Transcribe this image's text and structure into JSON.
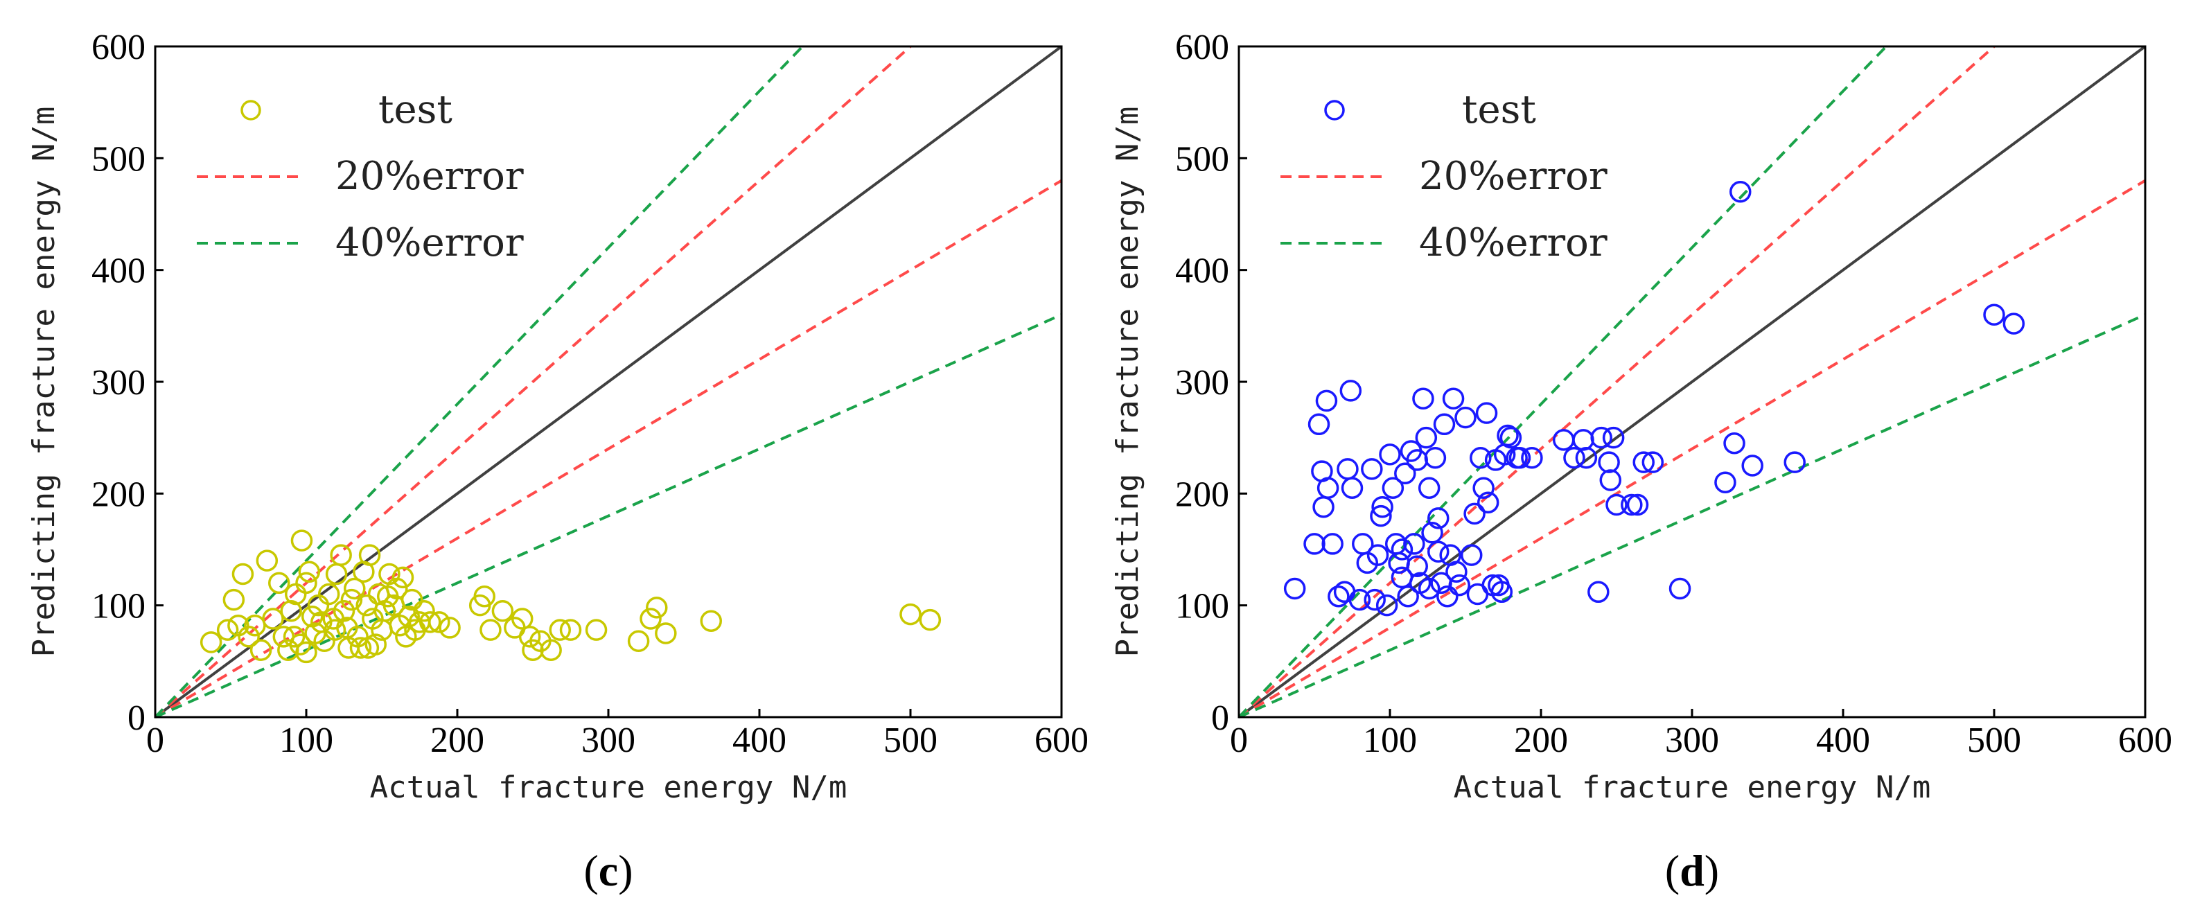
{
  "chart_data": [
    {
      "type": "scatter",
      "panel": "(c)",
      "panel_letter": "c",
      "xlabel": "Actual fracture energy N/m",
      "ylabel": "Predicting fracture energy N/m",
      "xlim": [
        0,
        600
      ],
      "ylim": [
        0,
        600
      ],
      "xticks": [
        0,
        100,
        200,
        300,
        400,
        500,
        600
      ],
      "yticks": [
        0,
        100,
        200,
        300,
        400,
        500,
        600
      ],
      "legend": [
        "test",
        "20%error",
        "40%error"
      ],
      "legend_position": "top-left",
      "colors": {
        "marker": "#c8c800",
        "diag": "#404040",
        "err20": "#ff4a4a",
        "err40": "#1aa34a"
      },
      "reference_lines": [
        {
          "name": "ideal",
          "slope": 1.0
        },
        {
          "name": "20%error",
          "slope": 1.2
        },
        {
          "name": "20%error",
          "slope": 0.8
        },
        {
          "name": "40%error",
          "slope": 1.4
        },
        {
          "name": "40%error",
          "slope": 0.6
        }
      ],
      "series": [
        {
          "name": "test",
          "points": [
            [
              37,
              67
            ],
            [
              48,
              78
            ],
            [
              52,
              105
            ],
            [
              55,
              82
            ],
            [
              58,
              128
            ],
            [
              62,
              72
            ],
            [
              66,
              82
            ],
            [
              70,
              60
            ],
            [
              74,
              140
            ],
            [
              78,
              88
            ],
            [
              82,
              120
            ],
            [
              85,
              72
            ],
            [
              88,
              60
            ],
            [
              90,
              95
            ],
            [
              93,
              110
            ],
            [
              96,
              65
            ],
            [
              97,
              158
            ],
            [
              100,
              120
            ],
            [
              102,
              130
            ],
            [
              104,
              90
            ],
            [
              106,
              75
            ],
            [
              108,
              100
            ],
            [
              110,
              85
            ],
            [
              112,
              68
            ],
            [
              115,
              110
            ],
            [
              118,
              88
            ],
            [
              120,
              128
            ],
            [
              123,
              145
            ],
            [
              125,
              95
            ],
            [
              127,
              80
            ],
            [
              130,
              105
            ],
            [
              132,
              115
            ],
            [
              134,
              72
            ],
            [
              136,
              62
            ],
            [
              138,
              130
            ],
            [
              140,
              100
            ],
            [
              142,
              145
            ],
            [
              144,
              88
            ],
            [
              146,
              65
            ],
            [
              148,
              110
            ],
            [
              150,
              78
            ],
            [
              152,
              95
            ],
            [
              155,
              128
            ],
            [
              158,
              100
            ],
            [
              160,
              115
            ],
            [
              162,
              82
            ],
            [
              164,
              125
            ],
            [
              166,
              72
            ],
            [
              168,
              90
            ],
            [
              170,
              105
            ],
            [
              172,
              78
            ],
            [
              175,
              85
            ],
            [
              178,
              95
            ],
            [
              182,
              85
            ],
            [
              188,
              85
            ],
            [
              195,
              80
            ],
            [
              215,
              100
            ],
            [
              218,
              108
            ],
            [
              222,
              78
            ],
            [
              230,
              95
            ],
            [
              238,
              80
            ],
            [
              243,
              88
            ],
            [
              248,
              72
            ],
            [
              250,
              60
            ],
            [
              255,
              68
            ],
            [
              262,
              60
            ],
            [
              268,
              78
            ],
            [
              275,
              78
            ],
            [
              292,
              78
            ],
            [
              320,
              68
            ],
            [
              328,
              88
            ],
            [
              332,
              98
            ],
            [
              338,
              75
            ],
            [
              368,
              86
            ],
            [
              500,
              92
            ],
            [
              513,
              87
            ],
            [
              92,
              72
            ],
            [
              128,
              62
            ],
            [
              141,
              62
            ],
            [
              154,
              108
            ],
            [
              100,
              58
            ],
            [
              119,
              78
            ]
          ]
        }
      ]
    },
    {
      "type": "scatter",
      "panel": "(d)",
      "panel_letter": "d",
      "xlabel": "Actual fracture energy N/m",
      "ylabel": "Predicting fracture energy N/m",
      "xlim": [
        0,
        600
      ],
      "ylim": [
        0,
        600
      ],
      "xticks": [
        0,
        100,
        200,
        300,
        400,
        500,
        600
      ],
      "yticks": [
        0,
        100,
        200,
        300,
        400,
        500,
        600
      ],
      "legend": [
        "test",
        "20%error",
        "40%error"
      ],
      "legend_position": "top-left",
      "colors": {
        "marker": "#1a1aff",
        "diag": "#404040",
        "err20": "#ff4a4a",
        "err40": "#1aa34a"
      },
      "reference_lines": [
        {
          "name": "ideal",
          "slope": 1.0
        },
        {
          "name": "20%error",
          "slope": 1.2
        },
        {
          "name": "20%error",
          "slope": 0.8
        },
        {
          "name": "40%error",
          "slope": 1.4
        },
        {
          "name": "40%error",
          "slope": 0.6
        }
      ],
      "series": [
        {
          "name": "test",
          "points": [
            [
              37,
              115
            ],
            [
              50,
              155
            ],
            [
              53,
              262
            ],
            [
              55,
              220
            ],
            [
              56,
              188
            ],
            [
              58,
              283
            ],
            [
              59,
              205
            ],
            [
              62,
              155
            ],
            [
              66,
              108
            ],
            [
              70,
              112
            ],
            [
              72,
              222
            ],
            [
              74,
              292
            ],
            [
              75,
              205
            ],
            [
              80,
              105
            ],
            [
              82,
              155
            ],
            [
              85,
              138
            ],
            [
              88,
              222
            ],
            [
              90,
              105
            ],
            [
              92,
              145
            ],
            [
              94,
              180
            ],
            [
              95,
              188
            ],
            [
              98,
              100
            ],
            [
              100,
              235
            ],
            [
              102,
              205
            ],
            [
              104,
              155
            ],
            [
              106,
              138
            ],
            [
              108,
              125
            ],
            [
              110,
              218
            ],
            [
              112,
              108
            ],
            [
              114,
              238
            ],
            [
              116,
              155
            ],
            [
              118,
              230
            ],
            [
              120,
              120
            ],
            [
              122,
              285
            ],
            [
              124,
              250
            ],
            [
              126,
              205
            ],
            [
              128,
              165
            ],
            [
              130,
              232
            ],
            [
              132,
              178
            ],
            [
              134,
              120
            ],
            [
              136,
              262
            ],
            [
              138,
              108
            ],
            [
              140,
              145
            ],
            [
              142,
              285
            ],
            [
              144,
              130
            ],
            [
              146,
              118
            ],
            [
              150,
              268
            ],
            [
              154,
              145
            ],
            [
              156,
              182
            ],
            [
              158,
              110
            ],
            [
              160,
              232
            ],
            [
              162,
              205
            ],
            [
              164,
              272
            ],
            [
              165,
              192
            ],
            [
              168,
              118
            ],
            [
              170,
              230
            ],
            [
              172,
              118
            ],
            [
              174,
              112
            ],
            [
              176,
              235
            ],
            [
              178,
              252
            ],
            [
              180,
              250
            ],
            [
              184,
              232
            ],
            [
              186,
              232
            ],
            [
              194,
              232
            ],
            [
              215,
              248
            ],
            [
              222,
              232
            ],
            [
              228,
              248
            ],
            [
              230,
              232
            ],
            [
              238,
              112
            ],
            [
              240,
              250
            ],
            [
              245,
              228
            ],
            [
              246,
              212
            ],
            [
              248,
              250
            ],
            [
              250,
              190
            ],
            [
              260,
              190
            ],
            [
              264,
              190
            ],
            [
              268,
              228
            ],
            [
              274,
              228
            ],
            [
              292,
              115
            ],
            [
              322,
              210
            ],
            [
              328,
              245
            ],
            [
              332,
              470
            ],
            [
              340,
              225
            ],
            [
              368,
              228
            ],
            [
              500,
              360
            ],
            [
              513,
              352
            ],
            [
              108,
              150
            ],
            [
              118,
              135
            ],
            [
              126,
              115
            ],
            [
              132,
              148
            ]
          ]
        }
      ]
    }
  ]
}
